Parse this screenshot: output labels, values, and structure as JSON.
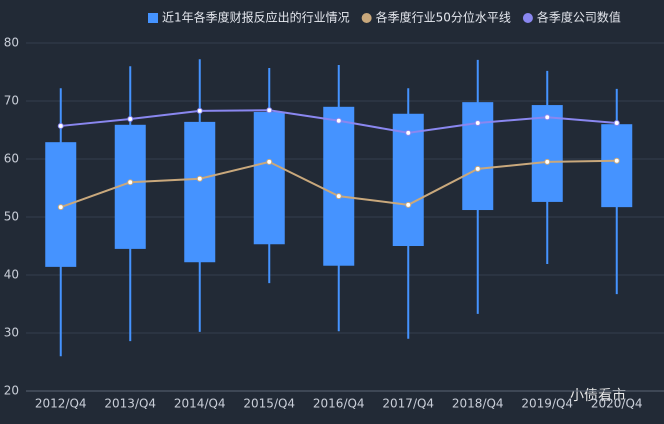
{
  "chart_data": {
    "type": "box_line",
    "categories": [
      "2012/Q4",
      "2013/Q4",
      "2014/Q4",
      "2015/Q4",
      "2016/Q4",
      "2017/Q4",
      "2018/Q4",
      "2019/Q4",
      "2020/Q4"
    ],
    "ylim": [
      20,
      80
    ],
    "yticks": [
      20,
      30,
      40,
      50,
      60,
      70,
      80
    ],
    "grid": true,
    "legend_position": "top",
    "box": {
      "name": "近1年各季度财报反应出的行业情况",
      "color": "#4593ff",
      "low": [
        26.0,
        28.6,
        30.2,
        38.6,
        30.3,
        29.0,
        33.3,
        41.9,
        36.7
      ],
      "q1": [
        41.4,
        44.5,
        42.2,
        45.3,
        41.6,
        45.0,
        51.2,
        52.6,
        51.7
      ],
      "q3": [
        62.9,
        65.9,
        66.4,
        68.1,
        69.0,
        67.8,
        69.8,
        69.3,
        66.0
      ],
      "high": [
        72.2,
        76.0,
        77.2,
        75.7,
        76.2,
        72.2,
        77.1,
        75.2,
        72.1
      ]
    },
    "series": [
      {
        "name": "各季度行业50分位水平线",
        "color": "#c9a87c",
        "values": [
          51.7,
          56.0,
          56.6,
          59.5,
          53.6,
          52.1,
          58.3,
          59.5,
          59.7
        ]
      },
      {
        "name": "各季度公司数值",
        "color": "#8a87f0",
        "values": [
          65.7,
          66.9,
          68.3,
          68.4,
          66.6,
          64.5,
          66.2,
          67.2,
          66.2
        ]
      }
    ],
    "watermark": "小债看市"
  }
}
